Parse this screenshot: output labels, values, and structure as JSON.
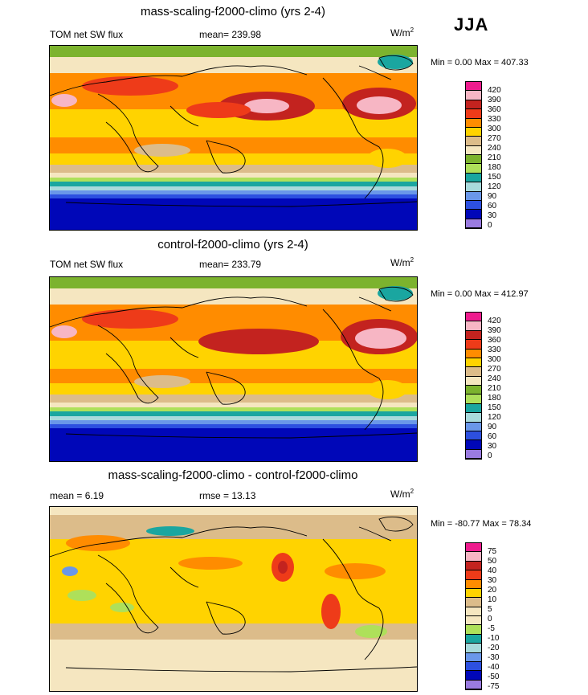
{
  "season": "JJA",
  "panels": [
    {
      "title": "mass-scaling-f2000-climo (yrs 2-4)",
      "left_label": "TOM net SW flux",
      "center_label": "mean= 239.98",
      "units_base": "W/m",
      "units_exp": "2",
      "minmax": "Min =   0.00 Max = 407.33",
      "colorbar_labels": [
        "420",
        "390",
        "360",
        "330",
        "300",
        "270",
        "240",
        "210",
        "180",
        "150",
        "120",
        "90",
        "60",
        "30",
        "0"
      ],
      "colors": [
        "#ee1c8e",
        "#f7b6c4",
        "#c3231f",
        "#ee3b19",
        "#ff8c00",
        "#ffd300",
        "#dcbc8a",
        "#f5e6c0",
        "#7cb32e",
        "#aee05a",
        "#1aa6a0",
        "#a8dadc",
        "#6a97e9",
        "#2d50e0",
        "#0007b8",
        "#9a7be0"
      ]
    },
    {
      "title": "control-f2000-climo (yrs 2-4)",
      "left_label": "TOM net SW flux",
      "center_label": "mean= 233.79",
      "units_base": "W/m",
      "units_exp": "2",
      "minmax": "Min =   0.00 Max = 412.97",
      "colorbar_labels": [
        "420",
        "390",
        "360",
        "330",
        "300",
        "270",
        "240",
        "210",
        "180",
        "150",
        "120",
        "90",
        "60",
        "30",
        "0"
      ],
      "colors": [
        "#ee1c8e",
        "#f7b6c4",
        "#c3231f",
        "#ee3b19",
        "#ff8c00",
        "#ffd300",
        "#dcbc8a",
        "#f5e6c0",
        "#7cb32e",
        "#aee05a",
        "#1aa6a0",
        "#a8dadc",
        "#6a97e9",
        "#2d50e0",
        "#0007b8",
        "#9a7be0"
      ]
    },
    {
      "title": "mass-scaling-f2000-climo - control-f2000-climo",
      "left_label": "mean =   6.19",
      "center_label": "rmse =  13.13",
      "units_base": "W/m",
      "units_exp": "2",
      "minmax": "Min = -80.77 Max =  78.34",
      "colorbar_labels": [
        "75",
        "50",
        "40",
        "30",
        "20",
        "10",
        "5",
        "0",
        "-5",
        "-10",
        "-20",
        "-30",
        "-40",
        "-50",
        "-75"
      ],
      "colors": [
        "#ee1c8e",
        "#f7b6c4",
        "#c3231f",
        "#ee3b19",
        "#ff8c00",
        "#ffd300",
        "#dcbc8a",
        "#f5e6c0",
        "#f5e6c0",
        "#aee05a",
        "#1aa6a0",
        "#a8dadc",
        "#6a97e9",
        "#2d50e0",
        "#0007b8",
        "#9a7be0"
      ]
    }
  ],
  "chart_data": [
    {
      "type": "heatmap",
      "title": "mass-scaling-f2000-climo (yrs 2-4)",
      "variable": "TOM net SW flux",
      "units": "W/m2",
      "mean": 239.98,
      "min": 0.0,
      "max": 407.33,
      "contour_levels": [
        0,
        30,
        60,
        90,
        120,
        150,
        180,
        210,
        240,
        270,
        300,
        330,
        360,
        390,
        420
      ]
    },
    {
      "type": "heatmap",
      "title": "control-f2000-climo (yrs 2-4)",
      "variable": "TOM net SW flux",
      "units": "W/m2",
      "mean": 233.79,
      "min": 0.0,
      "max": 412.97,
      "contour_levels": [
        0,
        30,
        60,
        90,
        120,
        150,
        180,
        210,
        240,
        270,
        300,
        330,
        360,
        390,
        420
      ]
    },
    {
      "type": "heatmap",
      "title": "mass-scaling-f2000-climo - control-f2000-climo",
      "units": "W/m2",
      "mean": 6.19,
      "rmse": 13.13,
      "min": -80.77,
      "max": 78.34,
      "contour_levels": [
        -75,
        -50,
        -40,
        -30,
        -20,
        -10,
        -5,
        0,
        5,
        10,
        20,
        30,
        40,
        50,
        75
      ]
    }
  ]
}
